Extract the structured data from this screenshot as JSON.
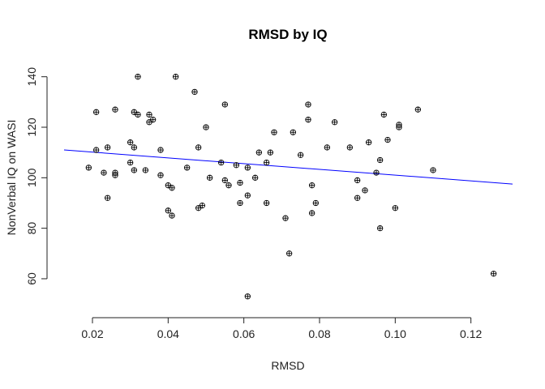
{
  "chart_data": {
    "type": "scatter",
    "title": "RMSD by IQ",
    "xlabel": "RMSD",
    "ylabel": "NonVerbal IQ on WASI",
    "xlim": [
      0.0125,
      0.131
    ],
    "ylim": [
      51,
      146
    ],
    "xticks": [
      "0.02",
      "0.04",
      "0.06",
      "0.08",
      "0.10",
      "0.12"
    ],
    "xtick_values": [
      0.02,
      0.04,
      0.06,
      0.08,
      0.1,
      0.12
    ],
    "yticks": [
      "60",
      "80",
      "100",
      "120",
      "140"
    ],
    "ytick_values": [
      60,
      80,
      100,
      120,
      140
    ],
    "grid": false,
    "marker": "circle-plus",
    "regression_line": {
      "x": [
        0.0125,
        0.131
      ],
      "y": [
        111,
        97.5
      ],
      "color": "#0000ff"
    },
    "points": [
      [
        0.019,
        104
      ],
      [
        0.021,
        126
      ],
      [
        0.021,
        111
      ],
      [
        0.023,
        102
      ],
      [
        0.024,
        112
      ],
      [
        0.024,
        92
      ],
      [
        0.026,
        127
      ],
      [
        0.026,
        102
      ],
      [
        0.026,
        101
      ],
      [
        0.03,
        114
      ],
      [
        0.03,
        106
      ],
      [
        0.031,
        126
      ],
      [
        0.031,
        112
      ],
      [
        0.031,
        103
      ],
      [
        0.032,
        125
      ],
      [
        0.032,
        140
      ],
      [
        0.034,
        103
      ],
      [
        0.035,
        125
      ],
      [
        0.035,
        122
      ],
      [
        0.036,
        123
      ],
      [
        0.038,
        111
      ],
      [
        0.038,
        101
      ],
      [
        0.04,
        97
      ],
      [
        0.04,
        87
      ],
      [
        0.041,
        96
      ],
      [
        0.041,
        85
      ],
      [
        0.042,
        140
      ],
      [
        0.045,
        104
      ],
      [
        0.047,
        134
      ],
      [
        0.048,
        112
      ],
      [
        0.048,
        88
      ],
      [
        0.049,
        89
      ],
      [
        0.05,
        120
      ],
      [
        0.051,
        100
      ],
      [
        0.054,
        106
      ],
      [
        0.055,
        129
      ],
      [
        0.055,
        99
      ],
      [
        0.056,
        97
      ],
      [
        0.058,
        105
      ],
      [
        0.059,
        98
      ],
      [
        0.059,
        90
      ],
      [
        0.061,
        104
      ],
      [
        0.061,
        93
      ],
      [
        0.061,
        53
      ],
      [
        0.063,
        100
      ],
      [
        0.064,
        110
      ],
      [
        0.066,
        106
      ],
      [
        0.066,
        90
      ],
      [
        0.067,
        110
      ],
      [
        0.068,
        118
      ],
      [
        0.071,
        84
      ],
      [
        0.072,
        70
      ],
      [
        0.073,
        118
      ],
      [
        0.075,
        109
      ],
      [
        0.077,
        129
      ],
      [
        0.077,
        123
      ],
      [
        0.078,
        97
      ],
      [
        0.078,
        86
      ],
      [
        0.079,
        90
      ],
      [
        0.082,
        112
      ],
      [
        0.084,
        122
      ],
      [
        0.088,
        112
      ],
      [
        0.09,
        99
      ],
      [
        0.09,
        92
      ],
      [
        0.092,
        95
      ],
      [
        0.093,
        114
      ],
      [
        0.095,
        102
      ],
      [
        0.096,
        107
      ],
      [
        0.096,
        80
      ],
      [
        0.097,
        125
      ],
      [
        0.098,
        115
      ],
      [
        0.1,
        88
      ],
      [
        0.101,
        120
      ],
      [
        0.101,
        121
      ],
      [
        0.106,
        127
      ],
      [
        0.11,
        103
      ],
      [
        0.126,
        62
      ]
    ]
  }
}
